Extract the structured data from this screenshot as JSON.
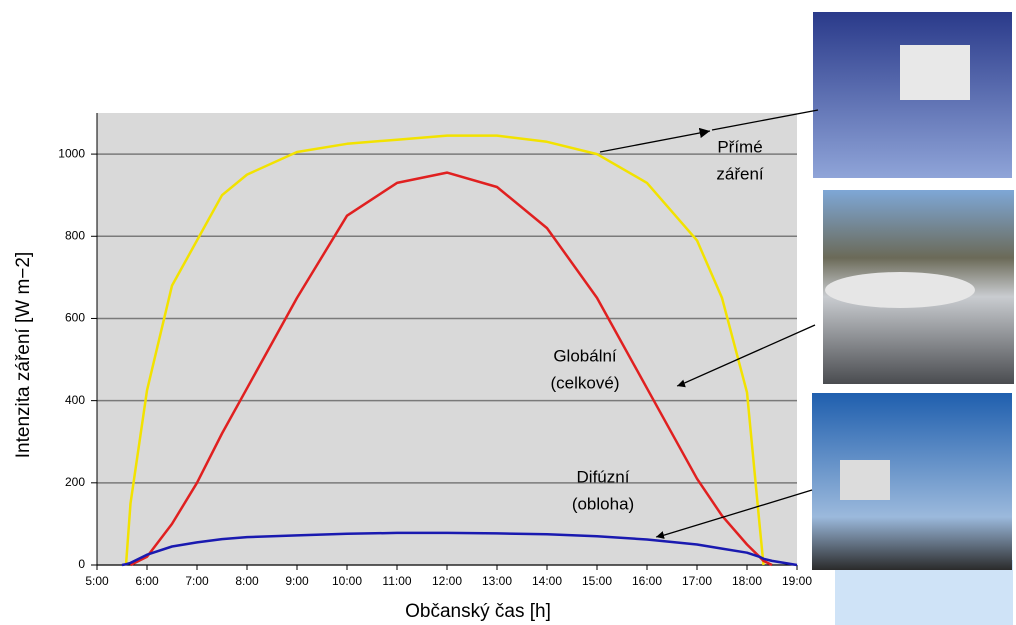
{
  "chart_data": {
    "type": "line",
    "x_label": "Občanský čas [h]",
    "y_label": "Intenzita záření [W m−2]",
    "x": [
      5.5,
      5.58,
      5.67,
      6,
      6.5,
      7,
      7.5,
      8,
      9,
      10,
      11,
      12,
      13,
      14,
      15,
      16,
      17,
      17.5,
      18,
      18.25,
      18.33,
      18.5,
      19
    ],
    "series": [
      {
        "name": "Přímé záření",
        "color": "#f2e200",
        "values": [
          null,
          0,
          150,
          425,
          680,
          790,
          900,
          950,
          1005,
          1025,
          1035,
          1045,
          1045,
          1030,
          1000,
          930,
          790,
          650,
          420,
          100,
          0,
          null,
          null
        ]
      },
      {
        "name": "Globální (celkové)",
        "color": "#e02020",
        "values": [
          null,
          null,
          0,
          20,
          100,
          200,
          320,
          430,
          650,
          850,
          930,
          955,
          920,
          820,
          650,
          430,
          210,
          120,
          50,
          20,
          10,
          0,
          null
        ]
      },
      {
        "name": "Difúzní (obloha)",
        "color": "#1a1ab0",
        "values": [
          0,
          2,
          5,
          25,
          45,
          55,
          63,
          68,
          72,
          76,
          78,
          78,
          77,
          75,
          70,
          62,
          50,
          40,
          30,
          20,
          15,
          10,
          0
        ]
      }
    ],
    "annotations": [
      {
        "lines": [
          "Přímé",
          "záření"
        ]
      },
      {
        "lines": [
          "Globální",
          "(celkové)"
        ]
      },
      {
        "lines": [
          "Difúzní",
          "(obloha)"
        ]
      }
    ],
    "xlim": [
      5,
      19
    ],
    "xticks": [
      {
        "value": 5,
        "label": "5:00"
      },
      {
        "value": 6,
        "label": "6:00"
      },
      {
        "value": 7,
        "label": "7:00"
      },
      {
        "value": 8,
        "label": "8:00"
      },
      {
        "value": 9,
        "label": "9:00"
      },
      {
        "value": 10,
        "label": "10:00"
      },
      {
        "value": 11,
        "label": "11:00"
      },
      {
        "value": 12,
        "label": "12:00"
      },
      {
        "value": 13,
        "label": "13:00"
      },
      {
        "value": 14,
        "label": "14:00"
      },
      {
        "value": 15,
        "label": "15:00"
      },
      {
        "value": 16,
        "label": "16:00"
      },
      {
        "value": 17,
        "label": "17:00"
      },
      {
        "value": 18,
        "label": "18:00"
      },
      {
        "value": 19,
        "label": "19:00"
      }
    ],
    "ylim": [
      0,
      1100
    ],
    "yticks": [
      0,
      200,
      400,
      600,
      800,
      1000
    ],
    "grid": true
  }
}
